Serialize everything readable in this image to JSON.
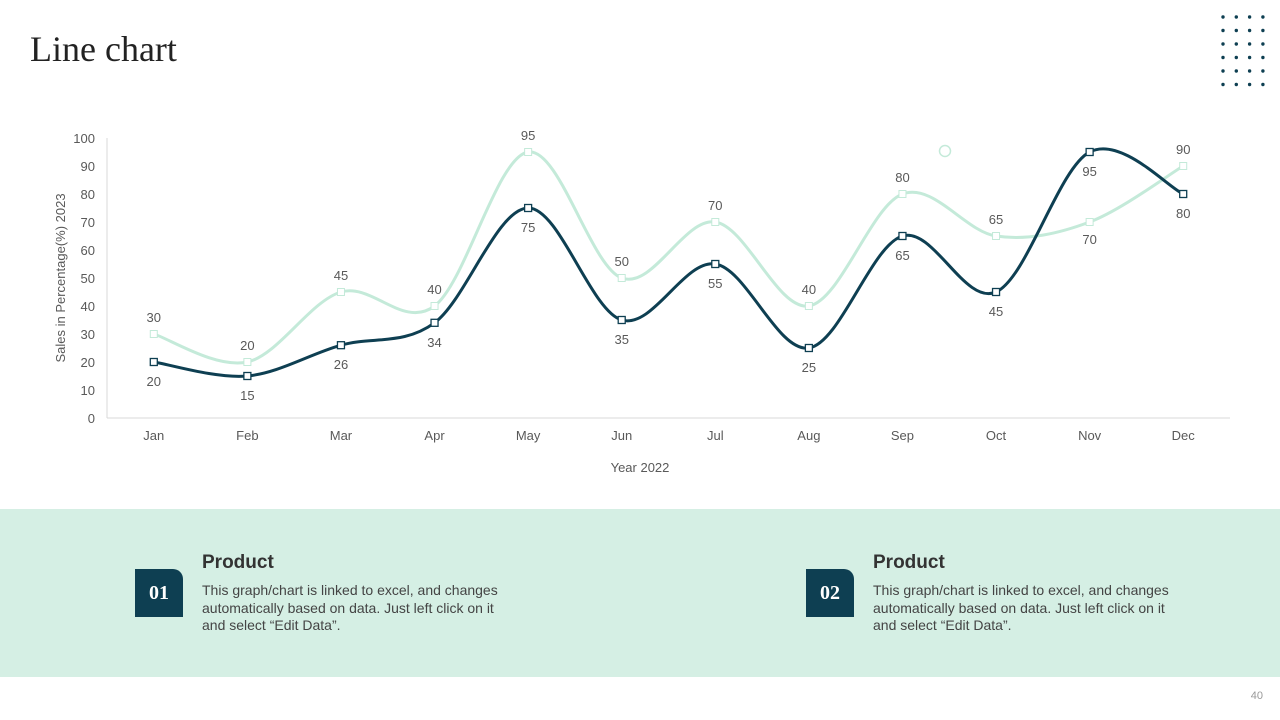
{
  "slide": {
    "title": "Line chart",
    "page_number": "40"
  },
  "chart_data": {
    "type": "line",
    "categories": [
      "Jan",
      "Feb",
      "Mar",
      "Apr",
      "May",
      "Jun",
      "Jul",
      "Aug",
      "Sep",
      "Oct",
      "Nov",
      "Dec"
    ],
    "series": [
      {
        "values": [
          30,
          20,
          45,
          40,
          95,
          50,
          70,
          40,
          80,
          65,
          70,
          90
        ],
        "color": "#c4ead9"
      },
      {
        "values": [
          20,
          15,
          26,
          34,
          75,
          35,
          55,
          25,
          65,
          45,
          95,
          80
        ],
        "color": "#0e3f52"
      }
    ],
    "xlabel": "Year 2022",
    "ylabel": "Sales in Percentage(%) 2023",
    "ylim": [
      0,
      100
    ],
    "yticks": [
      0,
      10,
      20,
      30,
      40,
      50,
      60,
      70,
      80,
      90,
      100
    ],
    "legend": "none",
    "grid": false
  },
  "cards": [
    {
      "number": "01",
      "heading": "Product",
      "text": "This graph/chart is linked to excel, and changes automatically based on data. Just left click on it and select “Edit Data”."
    },
    {
      "number": "02",
      "heading": "Product",
      "text": "This graph/chart is linked to excel, and changes automatically based on data. Just left click on it and select “Edit Data”."
    }
  ],
  "colors": {
    "accent_dark": "#0e3f52",
    "accent_light": "#c4ead9",
    "band": "#d5efe4"
  }
}
